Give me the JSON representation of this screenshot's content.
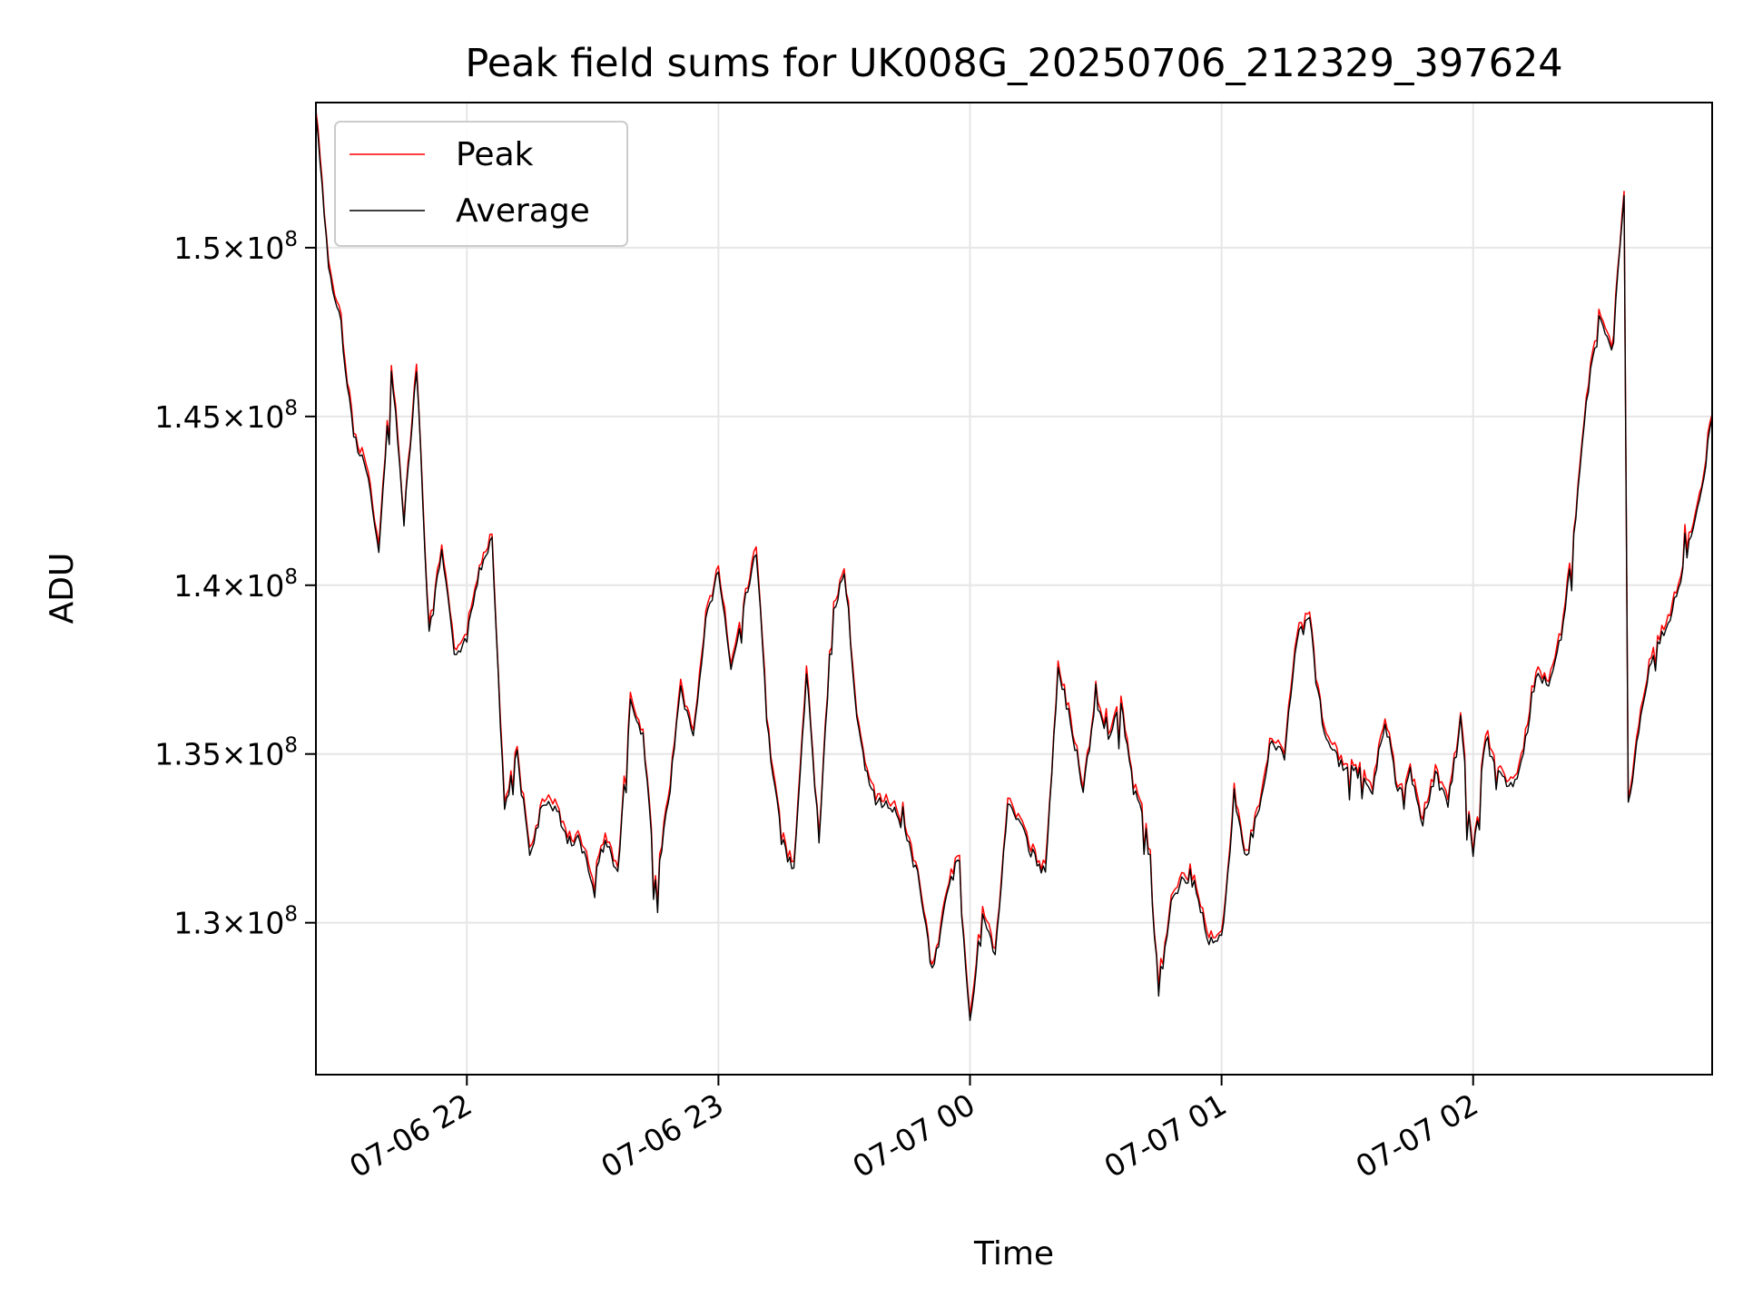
{
  "chart_data": {
    "type": "line",
    "title": "Peak field sums for UK008G_20250706_212329_397624",
    "xlabel": "Time",
    "ylabel": "ADU",
    "x_range": [
      "2025-07-06 21:24",
      "2025-07-07 02:57"
    ],
    "ylim": [
      125500000,
      154300000
    ],
    "grid": true,
    "legend_position": "top-left",
    "x_ticks": [
      {
        "value": "2025-07-06 22:00",
        "label": "07-06 22"
      },
      {
        "value": "2025-07-06 23:00",
        "label": "07-06 23"
      },
      {
        "value": "2025-07-07 00:00",
        "label": "07-07 00"
      },
      {
        "value": "2025-07-07 01:00",
        "label": "07-07 01"
      },
      {
        "value": "2025-07-07 02:00",
        "label": "07-07 02"
      }
    ],
    "y_ticks": [
      {
        "value": 130000000,
        "mantissa": "1.3",
        "exponent": "8"
      },
      {
        "value": 135000000,
        "mantissa": "1.35",
        "exponent": "8"
      },
      {
        "value": 140000000,
        "mantissa": "1.4",
        "exponent": "8"
      },
      {
        "value": 145000000,
        "mantissa": "1.45",
        "exponent": "8"
      },
      {
        "value": 150000000,
        "mantissa": "1.5",
        "exponent": "8"
      }
    ],
    "series": [
      {
        "name": "Peak",
        "color": "#ff0000",
        "points": [
          [
            "2025-07-06 21:24",
            154000000
          ],
          [
            "2025-07-06 21:27",
            149500000
          ],
          [
            "2025-07-06 21:30",
            147500000
          ],
          [
            "2025-07-06 21:33",
            144500000
          ],
          [
            "2025-07-06 21:36",
            143500000
          ],
          [
            "2025-07-06 21:39",
            141000000
          ],
          [
            "2025-07-06 21:42",
            146500000
          ],
          [
            "2025-07-06 21:45",
            142000000
          ],
          [
            "2025-07-06 21:48",
            146500000
          ],
          [
            "2025-07-06 21:51",
            138500000
          ],
          [
            "2025-07-06 21:54",
            141000000
          ],
          [
            "2025-07-06 21:57",
            138000000
          ],
          [
            "2025-07-06 22:00",
            138500000
          ],
          [
            "2025-07-06 22:03",
            140500000
          ],
          [
            "2025-07-06 22:06",
            141500000
          ],
          [
            "2025-07-06 22:09",
            133500000
          ],
          [
            "2025-07-06 22:12",
            135000000
          ],
          [
            "2025-07-06 22:15",
            132000000
          ],
          [
            "2025-07-06 22:18",
            133500000
          ],
          [
            "2025-07-06 22:21",
            133500000
          ],
          [
            "2025-07-06 22:24",
            132500000
          ],
          [
            "2025-07-06 22:27",
            132500000
          ],
          [
            "2025-07-06 22:30",
            131200000
          ],
          [
            "2025-07-06 22:33",
            132500000
          ],
          [
            "2025-07-06 22:36",
            131500000
          ],
          [
            "2025-07-06 22:39",
            136500000
          ],
          [
            "2025-07-06 22:42",
            135500000
          ],
          [
            "2025-07-06 22:45",
            131200000
          ],
          [
            "2025-07-06 22:48",
            133500000
          ],
          [
            "2025-07-06 22:51",
            137000000
          ],
          [
            "2025-07-06 22:54",
            135500000
          ],
          [
            "2025-07-06 22:57",
            139000000
          ],
          [
            "2025-07-06 23:00",
            140500000
          ],
          [
            "2025-07-06 23:03",
            137500000
          ],
          [
            "2025-07-06 23:06",
            139500000
          ],
          [
            "2025-07-06 23:09",
            141000000
          ],
          [
            "2025-07-06 23:12",
            135500000
          ],
          [
            "2025-07-06 23:15",
            132500000
          ],
          [
            "2025-07-06 23:18",
            131500000
          ],
          [
            "2025-07-06 23:21",
            137500000
          ],
          [
            "2025-07-06 23:24",
            132500000
          ],
          [
            "2025-07-06 23:27",
            139000000
          ],
          [
            "2025-07-06 23:30",
            140500000
          ],
          [
            "2025-07-06 23:33",
            136000000
          ],
          [
            "2025-07-06 23:36",
            134000000
          ],
          [
            "2025-07-06 23:39",
            133500000
          ],
          [
            "2025-07-06 23:42",
            133500000
          ],
          [
            "2025-07-06 23:45",
            132500000
          ],
          [
            "2025-07-06 23:48",
            131200000
          ],
          [
            "2025-07-06 23:51",
            128500000
          ],
          [
            "2025-07-06 23:54",
            130500000
          ],
          [
            "2025-07-06 23:57",
            132000000
          ],
          [
            "2025-07-07 00:00",
            127000000
          ],
          [
            "2025-07-07 00:03",
            130500000
          ],
          [
            "2025-07-07 00:06",
            129000000
          ],
          [
            "2025-07-07 00:09",
            133500000
          ],
          [
            "2025-07-07 00:12",
            133000000
          ],
          [
            "2025-07-07 00:15",
            132000000
          ],
          [
            "2025-07-07 00:18",
            131500000
          ],
          [
            "2025-07-07 00:21",
            137500000
          ],
          [
            "2025-07-07 00:24",
            136000000
          ],
          [
            "2025-07-07 00:27",
            134000000
          ],
          [
            "2025-07-07 00:30",
            136500000
          ],
          [
            "2025-07-07 00:33",
            135500000
          ],
          [
            "2025-07-07 00:36",
            136500000
          ],
          [
            "2025-07-07 00:39",
            134000000
          ],
          [
            "2025-07-07 00:42",
            133000000
          ],
          [
            "2025-07-07 00:45",
            128000000
          ],
          [
            "2025-07-07 00:48",
            130500000
          ],
          [
            "2025-07-07 00:51",
            131500000
          ],
          [
            "2025-07-07 00:54",
            131000000
          ],
          [
            "2025-07-07 00:57",
            129500000
          ],
          [
            "2025-07-07 01:00",
            129500000
          ],
          [
            "2025-07-07 01:03",
            133500000
          ],
          [
            "2025-07-07 01:06",
            132000000
          ],
          [
            "2025-07-07 01:09",
            133500000
          ],
          [
            "2025-07-07 01:12",
            135500000
          ],
          [
            "2025-07-07 01:15",
            135000000
          ],
          [
            "2025-07-07 01:18",
            138500000
          ],
          [
            "2025-07-07 01:21",
            139000000
          ],
          [
            "2025-07-07 01:24",
            136000000
          ],
          [
            "2025-07-07 01:27",
            135000000
          ],
          [
            "2025-07-07 01:30",
            134500000
          ],
          [
            "2025-07-07 01:33",
            134500000
          ],
          [
            "2025-07-07 01:36",
            134000000
          ],
          [
            "2025-07-07 01:39",
            136000000
          ],
          [
            "2025-07-07 01:42",
            134000000
          ],
          [
            "2025-07-07 01:45",
            134500000
          ],
          [
            "2025-07-07 01:48",
            133000000
          ],
          [
            "2025-07-07 01:51",
            134500000
          ],
          [
            "2025-07-07 01:54",
            133500000
          ],
          [
            "2025-07-07 01:57",
            136000000
          ],
          [
            "2025-07-07 02:00",
            132000000
          ],
          [
            "2025-07-07 02:03",
            135500000
          ],
          [
            "2025-07-07 02:06",
            134500000
          ],
          [
            "2025-07-07 02:09",
            134000000
          ],
          [
            "2025-07-07 02:12",
            135000000
          ],
          [
            "2025-07-07 02:15",
            137500000
          ],
          [
            "2025-07-07 02:18",
            137000000
          ],
          [
            "2025-07-07 02:21",
            138500000
          ],
          [
            "2025-07-07 02:24",
            141500000
          ],
          [
            "2025-07-07 02:27",
            145500000
          ],
          [
            "2025-07-07 02:30",
            148000000
          ],
          [
            "2025-07-07 02:33",
            147000000
          ],
          [
            "2025-07-07 02:36",
            151500000
          ],
          [
            "2025-07-07 02:37",
            133500000
          ],
          [
            "2025-07-07 02:39",
            135500000
          ],
          [
            "2025-07-07 02:42",
            137500000
          ],
          [
            "2025-07-07 02:45",
            138500000
          ],
          [
            "2025-07-07 02:48",
            139500000
          ],
          [
            "2025-07-07 02:51",
            141000000
          ],
          [
            "2025-07-07 02:54",
            142500000
          ],
          [
            "2025-07-07 02:57",
            145000000
          ]
        ]
      },
      {
        "name": "Average",
        "color": "#000000"
      }
    ]
  }
}
